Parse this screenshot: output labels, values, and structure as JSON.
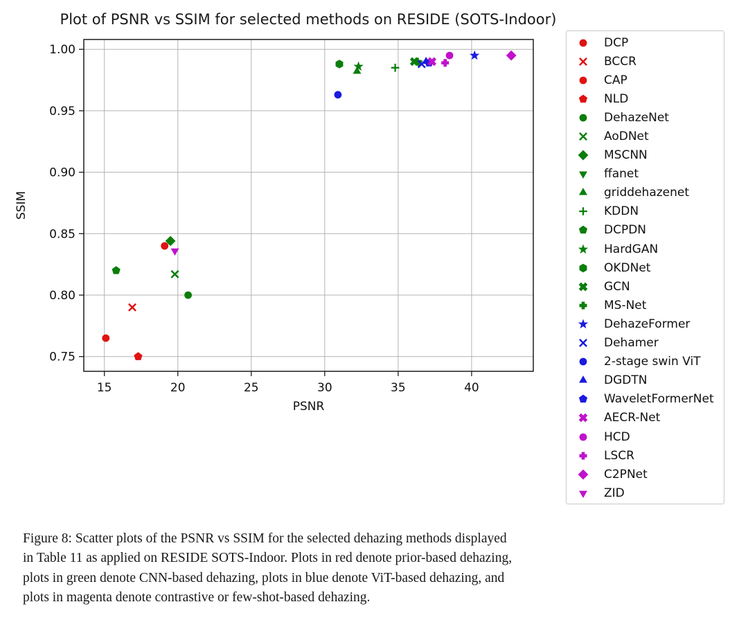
{
  "figure": {
    "caption_label": "Figure 8:",
    "caption_lines": [
      "Figure 8: Scatter plots of the PSNR vs SSIM for the selected dehazing methods displayed",
      "in Table 11 as applied on RESIDE SOTS-Indoor.  Plots in red denote prior-based dehazing,",
      "plots in green denote CNN-based dehazing, plots in blue denote ViT-based dehazing, and",
      "plots in magenta denote contrastive or few-shot-based dehazing."
    ]
  },
  "chart_data": {
    "type": "scatter",
    "title": "Plot of PSNR vs SSIM for selected methods on RESIDE (SOTS-Indoor)",
    "xlabel": "PSNR",
    "ylabel": "SSIM",
    "xlim": [
      13.6,
      44.2
    ],
    "ylim": [
      0.738,
      1.008
    ],
    "xticks": [
      15,
      20,
      25,
      30,
      35,
      40
    ],
    "xtick_labels": [
      "15",
      "20",
      "25",
      "30",
      "35",
      "40"
    ],
    "yticks": [
      0.75,
      0.8,
      0.85,
      0.9,
      0.95,
      1.0
    ],
    "ytick_labels": [
      "0.75",
      "0.80",
      "0.85",
      "0.90",
      "0.95",
      "1.00"
    ],
    "grid": true,
    "legend_position": "right-outside",
    "color_groups": {
      "prior_based": "#e01212",
      "cnn_based": "#0b7e0b",
      "vit_based": "#1b1bdd",
      "contrastive_fewshot": "#c012cc"
    },
    "series": [
      {
        "name": "DCP",
        "marker": "circle",
        "group": "prior_based",
        "color": "#e01212",
        "psnr": 15.1,
        "ssim": 0.765
      },
      {
        "name": "BCCR",
        "marker": "x",
        "group": "prior_based",
        "color": "#e01212",
        "psnr": 16.9,
        "ssim": 0.79
      },
      {
        "name": "CAP",
        "marker": "circle",
        "group": "prior_based",
        "color": "#e01212",
        "psnr": 19.1,
        "ssim": 0.84
      },
      {
        "name": "NLD",
        "marker": "pentagon",
        "group": "prior_based",
        "color": "#e01212",
        "psnr": 17.3,
        "ssim": 0.75
      },
      {
        "name": "DehazeNet",
        "marker": "circle",
        "group": "cnn_based",
        "color": "#0b7e0b",
        "psnr": 20.7,
        "ssim": 0.8
      },
      {
        "name": "AoDNet",
        "marker": "x",
        "group": "cnn_based",
        "color": "#0b7e0b",
        "psnr": 19.8,
        "ssim": 0.817
      },
      {
        "name": "MSCNN",
        "marker": "diamond",
        "group": "cnn_based",
        "color": "#0b7e0b",
        "psnr": 19.5,
        "ssim": 0.844
      },
      {
        "name": "ffanet",
        "marker": "triangle-down",
        "group": "cnn_based",
        "color": "#0b7e0b",
        "psnr": 36.4,
        "ssim": 0.989
      },
      {
        "name": "griddehazenet",
        "marker": "triangle-up",
        "group": "cnn_based",
        "color": "#0b7e0b",
        "psnr": 32.2,
        "ssim": 0.982
      },
      {
        "name": "KDDN",
        "marker": "plus",
        "group": "cnn_based",
        "color": "#0b7e0b",
        "psnr": 34.8,
        "ssim": 0.985
      },
      {
        "name": "DCPDN",
        "marker": "pentagon",
        "group": "cnn_based",
        "color": "#0b7e0b",
        "psnr": 15.8,
        "ssim": 0.82
      },
      {
        "name": "HardGAN",
        "marker": "star",
        "group": "cnn_based",
        "color": "#0b7e0b",
        "psnr": 32.3,
        "ssim": 0.986
      },
      {
        "name": "OKDNet",
        "marker": "hexagon",
        "group": "cnn_based",
        "color": "#0b7e0b",
        "psnr": 31.0,
        "ssim": 0.988
      },
      {
        "name": "GCN",
        "marker": "x-filled",
        "group": "cnn_based",
        "color": "#0b7e0b",
        "psnr": 36.1,
        "ssim": 0.99
      },
      {
        "name": "MS-Net",
        "marker": "plus-filled",
        "group": "cnn_based",
        "color": "#0b7e0b",
        "psnr": 36.3,
        "ssim": 0.99
      },
      {
        "name": "DehazeFormer",
        "marker": "star",
        "group": "vit_based",
        "color": "#1b1bdd",
        "psnr": 40.2,
        "ssim": 0.995
      },
      {
        "name": "Dehamer",
        "marker": "x",
        "group": "vit_based",
        "color": "#1b1bdd",
        "psnr": 36.6,
        "ssim": 0.988
      },
      {
        "name": "2-stage swin ViT",
        "marker": "circle",
        "group": "vit_based",
        "color": "#1b1bdd",
        "psnr": 30.9,
        "ssim": 0.963
      },
      {
        "name": "DGDTN",
        "marker": "triangle-up",
        "group": "vit_based",
        "color": "#1b1bdd",
        "psnr": 36.9,
        "ssim": 0.99
      },
      {
        "name": "WaveletFormerNet",
        "marker": "pentagon",
        "group": "vit_based",
        "color": "#1b1bdd",
        "psnr": 37.1,
        "ssim": 0.989
      },
      {
        "name": "AECR-Net",
        "marker": "x-filled",
        "group": "contrastive_fewshot",
        "color": "#c012cc",
        "psnr": 37.3,
        "ssim": 0.99
      },
      {
        "name": "HCD",
        "marker": "circle",
        "group": "contrastive_fewshot",
        "color": "#c012cc",
        "psnr": 38.5,
        "ssim": 0.995
      },
      {
        "name": "LSCR",
        "marker": "plus-filled",
        "group": "contrastive_fewshot",
        "color": "#c012cc",
        "psnr": 38.2,
        "ssim": 0.989
      },
      {
        "name": "C2PNet",
        "marker": "diamond",
        "group": "contrastive_fewshot",
        "color": "#c012cc",
        "psnr": 42.7,
        "ssim": 0.995
      },
      {
        "name": "ZID",
        "marker": "triangle-down",
        "group": "contrastive_fewshot",
        "color": "#c012cc",
        "psnr": 19.8,
        "ssim": 0.836
      }
    ]
  }
}
